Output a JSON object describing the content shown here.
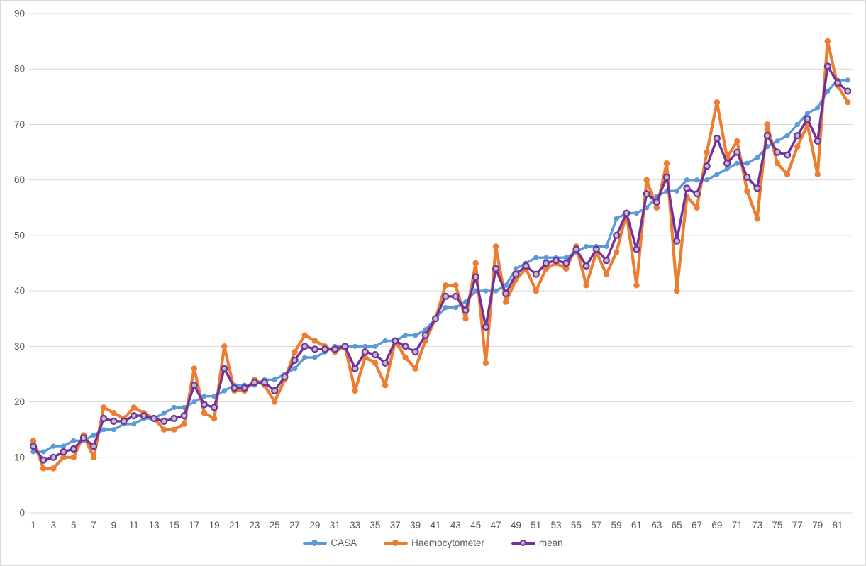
{
  "chart": {
    "background": "#ffffff",
    "grid_color": "#d9d9d9",
    "axis_label_color": "#595959",
    "border_color": "#d9d9d9"
  },
  "chart_data": {
    "type": "line",
    "title": "",
    "xlabel": "",
    "ylabel": "",
    "ylim": [
      0,
      90
    ],
    "grid": "horizontal",
    "legend_position": "bottom",
    "yticks": [
      0,
      10,
      20,
      30,
      40,
      50,
      60,
      70,
      80,
      90
    ],
    "xticks": [
      1,
      3,
      5,
      7,
      9,
      11,
      13,
      15,
      17,
      19,
      21,
      23,
      25,
      27,
      29,
      31,
      33,
      35,
      37,
      39,
      41,
      43,
      45,
      47,
      49,
      51,
      53,
      55,
      57,
      59,
      61,
      63,
      65,
      67,
      69,
      71,
      73,
      75,
      77,
      79,
      81
    ],
    "x": [
      1,
      2,
      3,
      4,
      5,
      6,
      7,
      8,
      9,
      10,
      11,
      12,
      13,
      14,
      15,
      16,
      17,
      18,
      19,
      20,
      21,
      22,
      23,
      24,
      25,
      26,
      27,
      28,
      29,
      30,
      31,
      32,
      33,
      34,
      35,
      36,
      37,
      38,
      39,
      40,
      41,
      42,
      43,
      44,
      45,
      46,
      47,
      48,
      49,
      50,
      51,
      52,
      53,
      54,
      55,
      56,
      57,
      58,
      59,
      60,
      61,
      62,
      63,
      64,
      65,
      66,
      67,
      68,
      69,
      70,
      71,
      72,
      73,
      74,
      75,
      76,
      77,
      78,
      79,
      80,
      81,
      82
    ],
    "series": [
      {
        "name": "CASA",
        "color": "#5b9bd5",
        "marker": "circle",
        "marker_fill": "#5b9bd5",
        "values": [
          11,
          11,
          12,
          12,
          13,
          13,
          14,
          15,
          15,
          16,
          16,
          17,
          17,
          18,
          19,
          19,
          20,
          21,
          21,
          22,
          23,
          23,
          23,
          24,
          24,
          25,
          26,
          28,
          28,
          29,
          30,
          30,
          30,
          30,
          30,
          31,
          31,
          32,
          32,
          33,
          35,
          37,
          37,
          38,
          40,
          40,
          40,
          41,
          44,
          45,
          46,
          46,
          46,
          46,
          47,
          48,
          48,
          48,
          53,
          54,
          54,
          55,
          57,
          58,
          58,
          60,
          60,
          60,
          61,
          62,
          63,
          63,
          64,
          66,
          67,
          68,
          70,
          72,
          73,
          76,
          78,
          78
        ]
      },
      {
        "name": "Haemocytometer",
        "color": "#ed7d31",
        "marker": "circle",
        "marker_fill": "#ed7d31",
        "values": [
          13,
          8,
          8,
          10,
          10,
          14,
          10,
          19,
          18,
          17,
          19,
          18,
          17,
          15,
          15,
          16,
          26,
          18,
          17,
          30,
          22,
          22,
          24,
          23,
          20,
          24,
          29,
          32,
          31,
          30,
          29,
          30,
          22,
          28,
          27,
          23,
          31,
          28,
          26,
          31,
          35,
          41,
          41,
          35,
          45,
          27,
          48,
          38,
          42,
          44,
          40,
          44,
          45,
          44,
          48,
          41,
          47,
          43,
          47,
          54,
          41,
          60,
          55,
          63,
          40,
          57,
          55,
          65,
          74,
          64,
          67,
          58,
          53,
          70,
          63,
          61,
          66,
          70,
          61,
          85,
          77,
          74
        ]
      },
      {
        "name": "mean",
        "color": "#7030a0",
        "marker": "circle",
        "marker_fill": "#bfbfbf",
        "values": [
          12,
          9.5,
          10,
          11,
          11.5,
          13.5,
          12,
          17,
          16.5,
          16.5,
          17.5,
          17.5,
          17,
          16.5,
          17,
          17.5,
          23,
          19.5,
          19,
          26,
          22.5,
          22.5,
          23.5,
          23.5,
          22,
          24.5,
          27.5,
          30,
          29.5,
          29.5,
          29.5,
          30,
          26,
          29,
          28.5,
          27,
          31,
          30,
          29,
          32,
          35,
          39,
          39,
          36.5,
          42.5,
          33.5,
          44,
          39.5,
          43,
          44.5,
          43,
          45,
          45.5,
          45,
          47.5,
          44.5,
          47.5,
          45.5,
          50,
          54,
          47.5,
          57.5,
          56,
          60.5,
          49,
          58.5,
          57.5,
          62.5,
          67.5,
          63,
          65,
          60.5,
          58.5,
          68,
          65,
          64.5,
          68,
          71,
          67,
          80.5,
          77.5,
          76
        ]
      }
    ],
    "legend": [
      "CASA",
      "Haemocytometer",
      "mean"
    ]
  }
}
